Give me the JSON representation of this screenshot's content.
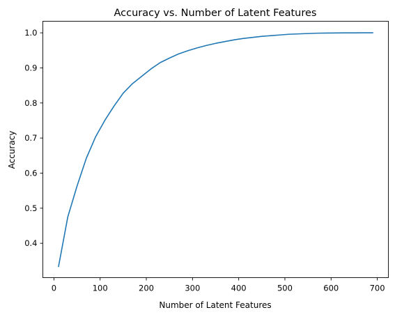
{
  "chart_data": {
    "type": "line",
    "title": "Accuracy vs. Number of Latent Features",
    "xlabel": "Number of Latent Features",
    "ylabel": "Accuracy",
    "xlim": [
      -24,
      724
    ],
    "ylim": [
      0.302,
      1.033
    ],
    "xticks": [
      0,
      100,
      200,
      300,
      400,
      500,
      600,
      700
    ],
    "yticks": [
      0.4,
      0.5,
      0.6,
      0.7,
      0.8,
      0.9,
      1.0
    ],
    "xtick_labels": [
      "0",
      "100",
      "200",
      "300",
      "400",
      "500",
      "600",
      "700"
    ],
    "ytick_labels": [
      "0.4",
      "0.5",
      "0.6",
      "0.7",
      "0.8",
      "0.9",
      "1.0"
    ],
    "grid": false,
    "series": [
      {
        "color": "#1f77b4",
        "x": [
          10,
          30,
          50,
          70,
          90,
          110,
          130,
          150,
          170,
          190,
          210,
          230,
          250,
          270,
          290,
          310,
          330,
          350,
          370,
          390,
          410,
          430,
          450,
          470,
          490,
          510,
          530,
          550,
          570,
          590,
          610,
          630,
          650,
          670,
          690
        ],
        "values": [
          0.334,
          0.475,
          0.563,
          0.642,
          0.703,
          0.75,
          0.791,
          0.828,
          0.855,
          0.876,
          0.897,
          0.915,
          0.928,
          0.94,
          0.949,
          0.957,
          0.964,
          0.97,
          0.975,
          0.98,
          0.984,
          0.987,
          0.99,
          0.992,
          0.994,
          0.996,
          0.997,
          0.998,
          0.999,
          0.9993,
          0.9996,
          0.9998,
          0.9999,
          1.0,
          1.0
        ]
      }
    ]
  }
}
